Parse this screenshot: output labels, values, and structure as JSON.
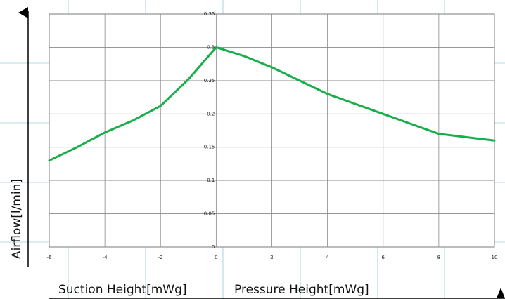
{
  "chart_data": {
    "type": "line",
    "title": "",
    "ylabel": "Airflow[l/min]",
    "xlabel_left": "Suction Height[mWg]",
    "xlabel_right": "Pressure Height[mWg]",
    "xlim": [
      -6,
      10
    ],
    "ylim": [
      0,
      0.35
    ],
    "xticks": [
      "-6",
      "-4",
      "-2",
      "0",
      "2",
      "4",
      "6",
      "8",
      "10"
    ],
    "yticks": [
      "0",
      "0.05",
      "0.1",
      "0.15",
      "0.2",
      "0.25",
      "0.3",
      "0.35"
    ],
    "grid": true,
    "x": [
      -6,
      -5,
      -4,
      -3,
      -2,
      -1,
      0,
      1,
      2,
      3,
      4,
      5,
      6,
      7,
      8,
      9,
      10
    ],
    "series": [
      {
        "values": [
          0.13,
          0.15,
          0.172,
          0.19,
          0.212,
          0.252,
          0.3,
          0.287,
          0.27,
          0.25,
          0.23,
          0.215,
          0.2,
          0.185,
          0.17,
          0.165,
          0.16
        ]
      }
    ],
    "colors": {
      "line": "#19ad4b",
      "grid": "#888888",
      "background_grid": "#6fb8c8",
      "axis": "#000000"
    }
  }
}
